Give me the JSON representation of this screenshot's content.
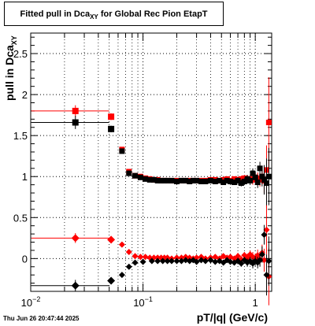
{
  "title": {
    "main": "Fitted pull in Dca",
    "sub": "XY",
    "suffix": " for Global Rec Pion EtapT"
  },
  "timestamp": "Thu Jun 26 20:47:44 2025",
  "chart_data": {
    "type": "scatter",
    "xlabel": "pT/|q| (GeV/c)",
    "ylabel": "pull in Dca",
    "ylabel_sub": "XY",
    "xscale": "log",
    "xlim": [
      0.01,
      1.4
    ],
    "ylim": [
      -0.4,
      2.75
    ],
    "grid": true,
    "x_tick_labels": [
      {
        "x": 0.01,
        "label": "10",
        "exp": "−2"
      },
      {
        "x": 0.1,
        "label": "10",
        "exp": "−1"
      },
      {
        "x": 1,
        "label": "1",
        "exp": ""
      }
    ],
    "y_ticks": [
      0,
      0.5,
      1,
      1.5,
      2,
      2.5
    ],
    "y_tick_labels": [
      "0",
      "0.5",
      "1",
      "1.5",
      "2",
      "2.5"
    ],
    "colors": {
      "red": "#ff0000",
      "black": "#000000"
    },
    "series": [
      {
        "marker": "square",
        "color": "#ff0000",
        "points": [
          {
            "x": 0.025,
            "y": 1.8,
            "xlo": 0.0101,
            "xhi": 0.05,
            "e": 0.07
          },
          {
            "x": 0.052,
            "y": 1.73,
            "xlo": 0.05,
            "xhi": 0.054,
            "e": 0.04
          },
          {
            "x": 0.065,
            "y": 1.33,
            "xlo": 0.063,
            "xhi": 0.067,
            "e": 0.03
          },
          {
            "x": 0.075,
            "y": 1.06,
            "xlo": 0.073,
            "xhi": 0.077,
            "e": 0.03
          },
          {
            "x": 0.085,
            "y": 1.01,
            "xlo": 0.083,
            "xhi": 0.087,
            "e": 0.03
          },
          {
            "x": 0.095,
            "y": 1.0,
            "e": 0.02
          },
          {
            "x": 0.105,
            "y": 0.98,
            "e": 0.02
          },
          {
            "x": 0.115,
            "y": 0.97,
            "e": 0.02
          },
          {
            "x": 0.125,
            "y": 0.96,
            "e": 0.02
          },
          {
            "x": 0.135,
            "y": 0.96,
            "e": 0.02
          },
          {
            "x": 0.145,
            "y": 0.95,
            "e": 0.02
          },
          {
            "x": 0.155,
            "y": 0.95,
            "e": 0.02
          },
          {
            "x": 0.165,
            "y": 0.95,
            "e": 0.02
          },
          {
            "x": 0.18,
            "y": 0.95,
            "e": 0.02
          },
          {
            "x": 0.2,
            "y": 0.95,
            "e": 0.02
          },
          {
            "x": 0.22,
            "y": 0.95,
            "e": 0.02
          },
          {
            "x": 0.24,
            "y": 0.95,
            "e": 0.02
          },
          {
            "x": 0.26,
            "y": 0.95,
            "e": 0.02
          },
          {
            "x": 0.28,
            "y": 0.95,
            "e": 0.02
          },
          {
            "x": 0.3,
            "y": 0.95,
            "e": 0.02
          },
          {
            "x": 0.33,
            "y": 0.95,
            "e": 0.02
          },
          {
            "x": 0.36,
            "y": 0.95,
            "e": 0.02
          },
          {
            "x": 0.4,
            "y": 0.96,
            "e": 0.02
          },
          {
            "x": 0.44,
            "y": 0.96,
            "e": 0.03
          },
          {
            "x": 0.48,
            "y": 0.95,
            "e": 0.03
          },
          {
            "x": 0.52,
            "y": 0.96,
            "e": 0.03
          },
          {
            "x": 0.56,
            "y": 0.97,
            "e": 0.03
          },
          {
            "x": 0.6,
            "y": 0.95,
            "e": 0.03
          },
          {
            "x": 0.65,
            "y": 0.97,
            "e": 0.03
          },
          {
            "x": 0.7,
            "y": 0.96,
            "e": 0.04
          },
          {
            "x": 0.75,
            "y": 0.97,
            "e": 0.04
          },
          {
            "x": 0.8,
            "y": 0.98,
            "e": 0.04
          },
          {
            "x": 0.85,
            "y": 0.97,
            "e": 0.05
          },
          {
            "x": 0.9,
            "y": 0.97,
            "e": 0.05
          },
          {
            "x": 0.95,
            "y": 0.96,
            "e": 0.06
          },
          {
            "x": 1.0,
            "y": 0.99,
            "e": 0.06
          },
          {
            "x": 1.05,
            "y": 0.98,
            "e": 0.07
          },
          {
            "x": 1.1,
            "y": 0.96,
            "e": 0.08
          },
          {
            "x": 1.15,
            "y": 1.0,
            "e": 0.1
          },
          {
            "x": 1.2,
            "y": 0.95,
            "e": 0.15
          },
          {
            "x": 1.26,
            "y": 1.08,
            "e": 0.3
          },
          {
            "x": 1.32,
            "y": 1.66,
            "e": 0.55
          }
        ]
      },
      {
        "marker": "square",
        "color": "#000000",
        "points": [
          {
            "x": 0.025,
            "y": 1.66,
            "xlo": 0.0101,
            "xhi": 0.05,
            "e": 0.08
          },
          {
            "x": 0.052,
            "y": 1.58,
            "xlo": 0.05,
            "xhi": 0.054,
            "e": 0.04
          },
          {
            "x": 0.065,
            "y": 1.31,
            "e": 0.03
          },
          {
            "x": 0.075,
            "y": 1.04,
            "e": 0.03
          },
          {
            "x": 0.085,
            "y": 1.01,
            "e": 0.02
          },
          {
            "x": 0.095,
            "y": 0.99,
            "e": 0.02
          },
          {
            "x": 0.105,
            "y": 0.97,
            "e": 0.02
          },
          {
            "x": 0.115,
            "y": 0.96,
            "e": 0.02
          },
          {
            "x": 0.125,
            "y": 0.96,
            "e": 0.02
          },
          {
            "x": 0.135,
            "y": 0.95,
            "e": 0.02
          },
          {
            "x": 0.145,
            "y": 0.95,
            "e": 0.02
          },
          {
            "x": 0.155,
            "y": 0.95,
            "e": 0.02
          },
          {
            "x": 0.165,
            "y": 0.95,
            "e": 0.02
          },
          {
            "x": 0.18,
            "y": 0.95,
            "e": 0.02
          },
          {
            "x": 0.2,
            "y": 0.94,
            "e": 0.02
          },
          {
            "x": 0.22,
            "y": 0.95,
            "e": 0.02
          },
          {
            "x": 0.24,
            "y": 0.95,
            "e": 0.02
          },
          {
            "x": 0.26,
            "y": 0.94,
            "e": 0.02
          },
          {
            "x": 0.28,
            "y": 0.95,
            "e": 0.02
          },
          {
            "x": 0.3,
            "y": 0.95,
            "e": 0.02
          },
          {
            "x": 0.33,
            "y": 0.94,
            "e": 0.02
          },
          {
            "x": 0.36,
            "y": 0.94,
            "e": 0.02
          },
          {
            "x": 0.4,
            "y": 0.95,
            "e": 0.02
          },
          {
            "x": 0.44,
            "y": 0.94,
            "e": 0.03
          },
          {
            "x": 0.48,
            "y": 0.95,
            "e": 0.03
          },
          {
            "x": 0.52,
            "y": 0.93,
            "e": 0.03
          },
          {
            "x": 0.56,
            "y": 0.95,
            "e": 0.03
          },
          {
            "x": 0.6,
            "y": 0.94,
            "e": 0.03
          },
          {
            "x": 0.65,
            "y": 0.93,
            "e": 0.03
          },
          {
            "x": 0.7,
            "y": 0.95,
            "e": 0.04
          },
          {
            "x": 0.75,
            "y": 0.92,
            "e": 0.04
          },
          {
            "x": 0.8,
            "y": 0.94,
            "e": 0.04
          },
          {
            "x": 0.85,
            "y": 0.97,
            "e": 0.05
          },
          {
            "x": 0.9,
            "y": 0.95,
            "e": 0.05
          },
          {
            "x": 0.95,
            "y": 1.04,
            "e": 0.06
          },
          {
            "x": 1.0,
            "y": 0.99,
            "e": 0.06
          },
          {
            "x": 1.05,
            "y": 0.93,
            "e": 0.07
          },
          {
            "x": 1.1,
            "y": 1.1,
            "e": 0.08
          },
          {
            "x": 1.15,
            "y": 1.0,
            "e": 0.12
          },
          {
            "x": 1.2,
            "y": 0.96,
            "e": 0.18
          },
          {
            "x": 1.26,
            "y": 0.92,
            "e": 0.3
          },
          {
            "x": 1.32,
            "y": 1.0,
            "e": 0.35
          }
        ]
      },
      {
        "marker": "diamond",
        "color": "#ff0000",
        "points": [
          {
            "x": 0.025,
            "y": 0.25,
            "xlo": 0.0101,
            "xhi": 0.05,
            "e": 0.06
          },
          {
            "x": 0.052,
            "y": 0.23,
            "xlo": 0.05,
            "xhi": 0.054,
            "e": 0.03
          },
          {
            "x": 0.065,
            "y": 0.17,
            "e": 0.02
          },
          {
            "x": 0.075,
            "y": 0.08,
            "e": 0.02
          },
          {
            "x": 0.085,
            "y": 0.03,
            "e": 0.02
          },
          {
            "x": 0.095,
            "y": 0.02,
            "e": 0.02
          },
          {
            "x": 0.105,
            "y": 0.02,
            "e": 0.02
          },
          {
            "x": 0.115,
            "y": 0.01,
            "e": 0.02
          },
          {
            "x": 0.125,
            "y": 0.01,
            "e": 0.02
          },
          {
            "x": 0.135,
            "y": 0.01,
            "e": 0.02
          },
          {
            "x": 0.145,
            "y": 0.01,
            "e": 0.02
          },
          {
            "x": 0.155,
            "y": 0.01,
            "e": 0.02
          },
          {
            "x": 0.165,
            "y": 0.01,
            "e": 0.02
          },
          {
            "x": 0.18,
            "y": 0.0,
            "e": 0.02
          },
          {
            "x": 0.2,
            "y": 0.01,
            "e": 0.02
          },
          {
            "x": 0.22,
            "y": 0.01,
            "e": 0.02
          },
          {
            "x": 0.24,
            "y": 0.02,
            "e": 0.02
          },
          {
            "x": 0.26,
            "y": 0.01,
            "e": 0.02
          },
          {
            "x": 0.28,
            "y": 0.0,
            "e": 0.02
          },
          {
            "x": 0.3,
            "y": 0.01,
            "e": 0.02
          },
          {
            "x": 0.33,
            "y": 0.02,
            "e": 0.02
          },
          {
            "x": 0.36,
            "y": 0.0,
            "e": 0.02
          },
          {
            "x": 0.4,
            "y": 0.01,
            "e": 0.02
          },
          {
            "x": 0.44,
            "y": 0.02,
            "e": 0.03
          },
          {
            "x": 0.48,
            "y": 0.0,
            "e": 0.03
          },
          {
            "x": 0.52,
            "y": 0.03,
            "e": 0.03
          },
          {
            "x": 0.56,
            "y": 0.01,
            "e": 0.03
          },
          {
            "x": 0.6,
            "y": 0.02,
            "e": 0.03
          },
          {
            "x": 0.65,
            "y": 0.0,
            "e": 0.03
          },
          {
            "x": 0.7,
            "y": 0.03,
            "e": 0.04
          },
          {
            "x": 0.75,
            "y": -0.01,
            "e": 0.04
          },
          {
            "x": 0.8,
            "y": 0.04,
            "e": 0.04
          },
          {
            "x": 0.85,
            "y": 0.01,
            "e": 0.05
          },
          {
            "x": 0.9,
            "y": 0.05,
            "e": 0.05
          },
          {
            "x": 0.95,
            "y": 0.02,
            "e": 0.06
          },
          {
            "x": 1.0,
            "y": 0.0,
            "e": 0.06
          },
          {
            "x": 1.05,
            "y": 0.04,
            "e": 0.07
          },
          {
            "x": 1.1,
            "y": -0.01,
            "e": 0.08
          },
          {
            "x": 1.15,
            "y": 0.07,
            "e": 0.1
          },
          {
            "x": 1.2,
            "y": -0.02,
            "e": 0.14
          },
          {
            "x": 1.26,
            "y": 0.35,
            "e": 0.3
          },
          {
            "x": 1.32,
            "y": -0.22,
            "e": 0.35
          }
        ]
      },
      {
        "marker": "diamond",
        "color": "#000000",
        "points": [
          {
            "x": 0.025,
            "y": -0.33,
            "xlo": 0.0101,
            "xhi": 0.05,
            "e": 0.07
          },
          {
            "x": 0.052,
            "y": -0.27,
            "xlo": 0.05,
            "xhi": 0.054,
            "e": 0.03
          },
          {
            "x": 0.065,
            "y": -0.2,
            "e": 0.02
          },
          {
            "x": 0.075,
            "y": -0.1,
            "e": 0.02
          },
          {
            "x": 0.085,
            "y": -0.05,
            "e": 0.02
          },
          {
            "x": 0.1,
            "y": -0.04,
            "e": 0.02
          },
          {
            "x": 0.12,
            "y": -0.03,
            "e": 0.02
          },
          {
            "x": 0.135,
            "y": -0.03,
            "e": 0.02
          },
          {
            "x": 0.15,
            "y": -0.03,
            "e": 0.02
          },
          {
            "x": 0.165,
            "y": -0.03,
            "e": 0.02
          },
          {
            "x": 0.18,
            "y": -0.03,
            "e": 0.02
          },
          {
            "x": 0.2,
            "y": -0.03,
            "e": 0.02
          },
          {
            "x": 0.22,
            "y": -0.03,
            "e": 0.02
          },
          {
            "x": 0.24,
            "y": -0.02,
            "e": 0.02
          },
          {
            "x": 0.26,
            "y": -0.03,
            "e": 0.02
          },
          {
            "x": 0.28,
            "y": -0.02,
            "e": 0.02
          },
          {
            "x": 0.3,
            "y": -0.04,
            "e": 0.02
          },
          {
            "x": 0.33,
            "y": -0.02,
            "e": 0.02
          },
          {
            "x": 0.36,
            "y": -0.03,
            "e": 0.02
          },
          {
            "x": 0.4,
            "y": -0.02,
            "e": 0.02
          },
          {
            "x": 0.44,
            "y": -0.04,
            "e": 0.03
          },
          {
            "x": 0.48,
            "y": -0.03,
            "e": 0.03
          },
          {
            "x": 0.52,
            "y": -0.05,
            "e": 0.03
          },
          {
            "x": 0.56,
            "y": -0.02,
            "e": 0.03
          },
          {
            "x": 0.6,
            "y": -0.04,
            "e": 0.03
          },
          {
            "x": 0.65,
            "y": -0.05,
            "e": 0.03
          },
          {
            "x": 0.7,
            "y": -0.03,
            "e": 0.04
          },
          {
            "x": 0.75,
            "y": -0.06,
            "e": 0.04
          },
          {
            "x": 0.8,
            "y": -0.02,
            "e": 0.04
          },
          {
            "x": 0.85,
            "y": -0.05,
            "e": 0.05
          },
          {
            "x": 0.9,
            "y": -0.03,
            "e": 0.05
          },
          {
            "x": 0.95,
            "y": -0.06,
            "e": 0.06
          },
          {
            "x": 1.0,
            "y": -0.03,
            "e": 0.06
          },
          {
            "x": 1.05,
            "y": -0.05,
            "e": 0.07
          },
          {
            "x": 1.1,
            "y": -0.02,
            "e": 0.08
          },
          {
            "x": 1.15,
            "y": 0.05,
            "e": 0.1
          },
          {
            "x": 1.2,
            "y": 0.29,
            "e": 0.12
          },
          {
            "x": 1.26,
            "y": -0.2,
            "e": 0.25
          },
          {
            "x": 1.32,
            "y": -0.03,
            "e": 0.3
          }
        ]
      }
    ]
  }
}
